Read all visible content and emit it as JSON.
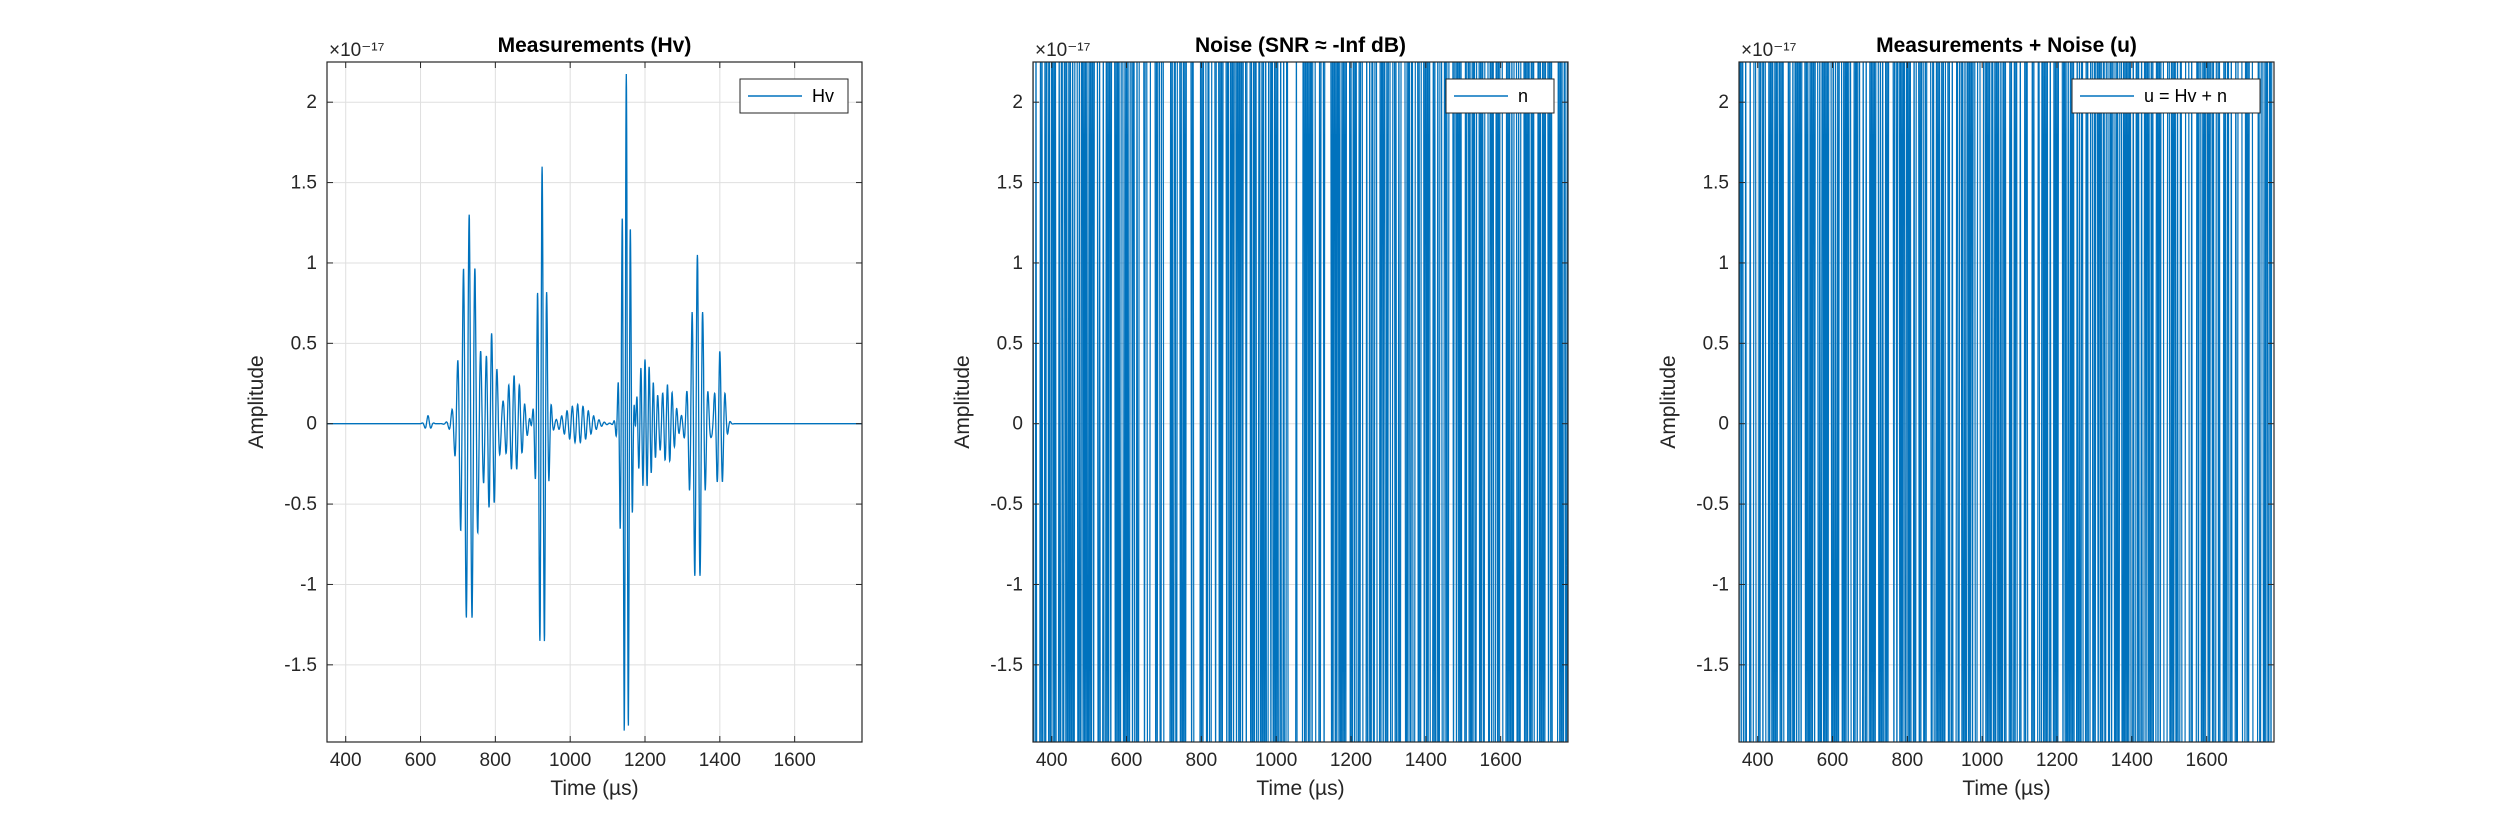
{
  "figure": {
    "background": "#ffffff",
    "axes_color": "#262626",
    "grid_color": "#dfdfdf",
    "line_color": "#0072bd"
  },
  "chart_data": [
    {
      "type": "line",
      "title": "Measurements (Hv)",
      "xlabel": "Time (µs)",
      "ylabel": "Amplitude",
      "exponent_label": "×10⁻¹⁷",
      "xlim": [
        350,
        1780
      ],
      "ylim": [
        -1.98,
        2.25
      ],
      "xticks": [
        400,
        600,
        800,
        1000,
        1200,
        1400,
        1600
      ],
      "xtick_labels": [
        "400",
        "600",
        "800",
        "1000",
        "1200",
        "1400",
        "1600"
      ],
      "yticks": [
        -1.5,
        -1,
        -0.5,
        0,
        0.5,
        1,
        1.5,
        2
      ],
      "ytick_labels": [
        "-1.5",
        "-1",
        "-0.5",
        "0",
        "0.5",
        "1",
        "1.5",
        "2"
      ],
      "grid": true,
      "legend": {
        "location": "top-right",
        "entries": [
          "Hv"
        ]
      },
      "series": [
        {
          "name": "Hv",
          "kind": "wavepackets",
          "baseline": 0,
          "packets": [
            {
              "center": 620,
              "amplitude": 0.05,
              "frequency": 0.06,
              "width": 10
            },
            {
              "center": 730,
              "amplitude": 1.3,
              "frequency": 0.065,
              "width": 28
            },
            {
              "center": 790,
              "amplitude": 0.55,
              "frequency": 0.07,
              "width": 20
            },
            {
              "center": 850,
              "amplitude": 0.3,
              "frequency": 0.07,
              "width": 30
            },
            {
              "center": 925,
              "amplitude": 1.6,
              "frequency": 0.08,
              "width": 15
            },
            {
              "center": 1020,
              "amplitude": 0.12,
              "frequency": 0.07,
              "width": 45
            },
            {
              "center": 1150,
              "amplitude": 2.2,
              "frequency": 0.09,
              "width": 15
            },
            {
              "center": 1200,
              "amplitude": 0.4,
              "frequency": 0.09,
              "width": 30
            },
            {
              "center": 1260,
              "amplitude": 0.25,
              "frequency": 0.08,
              "width": 25
            },
            {
              "center": 1340,
              "amplitude": 1.05,
              "frequency": 0.07,
              "width": 22
            },
            {
              "center": 1400,
              "amplitude": 0.45,
              "frequency": 0.07,
              "width": 15
            }
          ]
        }
      ]
    },
    {
      "type": "line",
      "title": "Noise (SNR ≈ -Inf dB)",
      "xlabel": "Time (µs)",
      "ylabel": "Amplitude",
      "exponent_label": "×10⁻¹⁷",
      "xlim": [
        350,
        1780
      ],
      "ylim": [
        -1.98,
        2.25
      ],
      "xticks": [
        400,
        600,
        800,
        1000,
        1200,
        1400,
        1600
      ],
      "xtick_labels": [
        "400",
        "600",
        "800",
        "1000",
        "1200",
        "1400",
        "1600"
      ],
      "yticks": [
        -1.5,
        -1,
        -0.5,
        0,
        0.5,
        1,
        1.5,
        2
      ],
      "ytick_labels": [
        "-1.5",
        "-1",
        "-0.5",
        "0",
        "0.5",
        "1",
        "1.5",
        "2"
      ],
      "grid": true,
      "legend": {
        "location": "top-right",
        "entries": [
          "n"
        ]
      },
      "series": [
        {
          "name": "n",
          "kind": "saturated-noise",
          "step": 2,
          "values_exceed_ylim": true
        }
      ]
    },
    {
      "type": "line",
      "title": "Measurements + Noise (u)",
      "xlabel": "Time (µs)",
      "ylabel": "Amplitude",
      "exponent_label": "×10⁻¹⁷",
      "xlim": [
        350,
        1780
      ],
      "ylim": [
        -1.98,
        2.25
      ],
      "xticks": [
        400,
        600,
        800,
        1000,
        1200,
        1400,
        1600
      ],
      "xtick_labels": [
        "400",
        "600",
        "800",
        "1000",
        "1200",
        "1400",
        "1600"
      ],
      "yticks": [
        -1.5,
        -1,
        -0.5,
        0,
        0.5,
        1,
        1.5,
        2
      ],
      "ytick_labels": [
        "-1.5",
        "-1",
        "-0.5",
        "0",
        "0.5",
        "1",
        "1.5",
        "2"
      ],
      "grid": true,
      "legend": {
        "location": "top-right",
        "entries": [
          "u = Hv + n"
        ]
      },
      "series": [
        {
          "name": "u = Hv + n",
          "kind": "saturated-noise",
          "step": 2,
          "values_exceed_ylim": true
        }
      ]
    }
  ]
}
